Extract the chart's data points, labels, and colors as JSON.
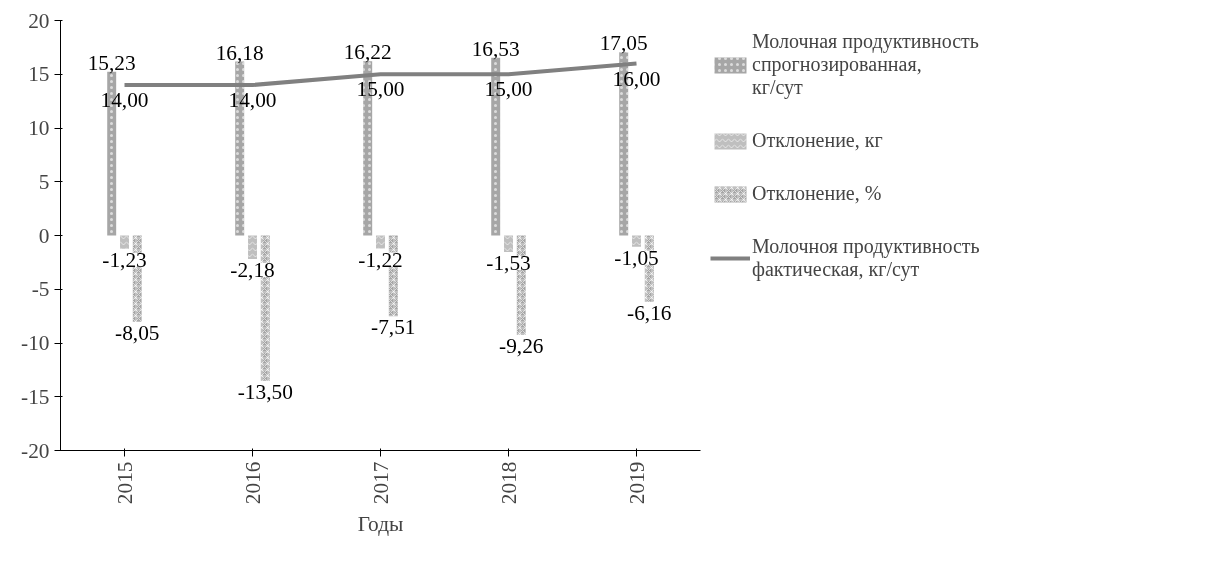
{
  "chart_data": {
    "type": "bar",
    "xlabel": "Годы",
    "categories": [
      "2015",
      "2016",
      "2017",
      "2018",
      "2019"
    ],
    "ylim": [
      -20,
      20
    ],
    "yticks": [
      -20,
      -15,
      -10,
      -5,
      0,
      5,
      10,
      15,
      20
    ],
    "grid": false,
    "legend": "right",
    "series": [
      {
        "name": "Молочная продуктивность спрогнозированная, кг/сут",
        "color": "#a6a6a6",
        "values": [
          15.23,
          16.18,
          16.22,
          16.53,
          17.05
        ],
        "value_labels": [
          "15,23",
          "16,18",
          "16,22",
          "16,53",
          "17,05"
        ]
      },
      {
        "name": "Отклонение, кг",
        "color": "#bfbfbf",
        "values": [
          -1.23,
          -2.18,
          -1.22,
          -1.53,
          -1.05
        ],
        "value_labels": [
          "-1,23",
          "-2,18",
          "-1,22",
          "-1,53",
          "-1,05"
        ]
      },
      {
        "name": "Отклонение, %",
        "color": "#a6a6a6",
        "values": [
          -8.05,
          -13.5,
          -7.51,
          -9.26,
          -6.16
        ],
        "value_labels": [
          "-8,05",
          "-13,50",
          "-7,51",
          "-9,26",
          "-6,16"
        ]
      },
      {
        "name": "Молочноя продуктивность фактическая, кг/сут",
        "type": "line",
        "color": "#808080",
        "values": [
          14,
          14,
          15,
          15,
          16
        ],
        "value_labels": [
          "14,00",
          "14,00",
          "15,00",
          "15,00",
          "16,00"
        ]
      }
    ]
  }
}
